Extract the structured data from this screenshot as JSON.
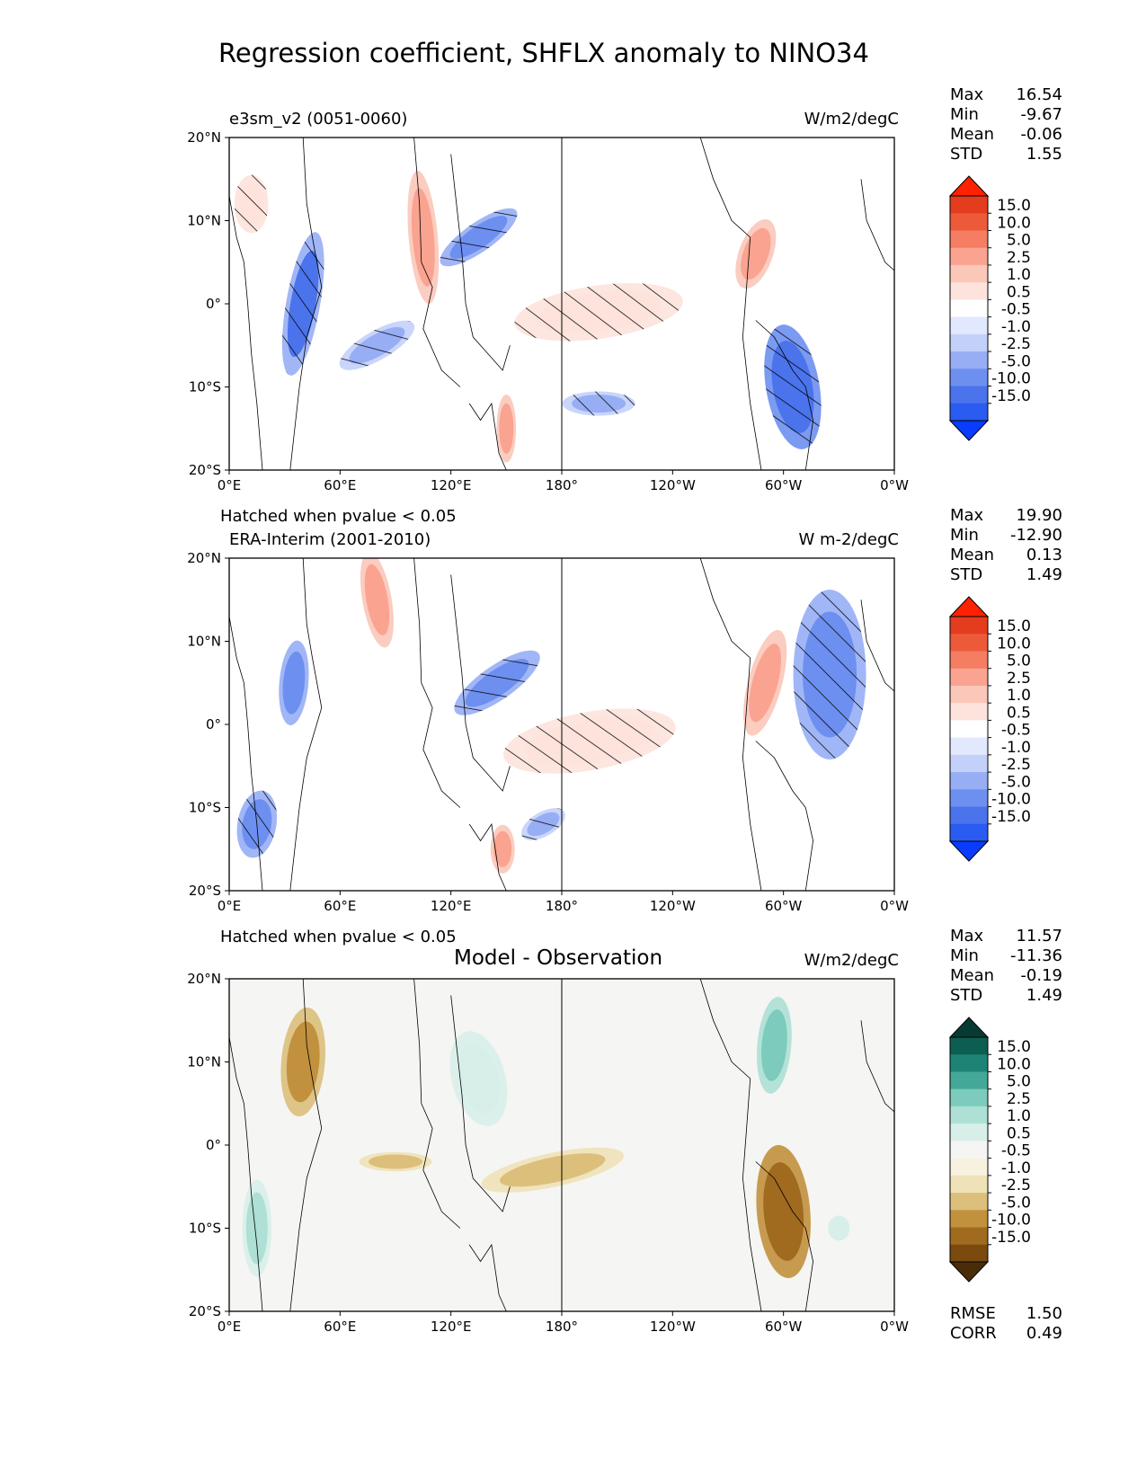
{
  "title": "Regression coefficient, SHFLX anomaly to NINO34",
  "hatch_note": "Hatched when pvalue < 0.05",
  "colors": {
    "diverging": [
      "#0a3cff",
      "#2a5cf2",
      "#4a73ec",
      "#6d8ff0",
      "#97aef5",
      "#c3d0fa",
      "#e2e8fd",
      "#ffffff",
      "#fde3dc",
      "#fbc7b9",
      "#f9a390",
      "#f47d62",
      "#ed5a3a",
      "#e43c1f",
      "#ff2200"
    ],
    "brbg": [
      "#4a2d08",
      "#7a4a0e",
      "#a06a1f",
      "#c2913d",
      "#dcbf7a",
      "#f0e2b8",
      "#f7f1e0",
      "#f5f5f3",
      "#d8efe9",
      "#aee0d5",
      "#7ccbbd",
      "#43a898",
      "#1d8374",
      "#0d5e52",
      "#063b33"
    ]
  },
  "panels": [
    {
      "id": "model",
      "left_label": "e3sm_v2 (0051-0060)",
      "right_label": "W/m2/degC",
      "stats": [
        {
          "name": "Max",
          "value": "16.54"
        },
        {
          "name": "Min",
          "value": "-9.67"
        },
        {
          "name": "Mean",
          "value": "-0.06"
        },
        {
          "name": "STD",
          "value": "1.55"
        }
      ]
    },
    {
      "id": "obs",
      "left_label": "ERA-Interim (2001-2010)",
      "right_label": "W m-2/degC",
      "stats": [
        {
          "name": "Max",
          "value": "19.90"
        },
        {
          "name": "Min",
          "value": "-12.90"
        },
        {
          "name": "Mean",
          "value": "0.13"
        },
        {
          "name": "STD",
          "value": "1.49"
        }
      ]
    },
    {
      "id": "diff",
      "center_label": "Model - Observation",
      "right_label": "W/m2/degC",
      "stats": [
        {
          "name": "Max",
          "value": "11.57"
        },
        {
          "name": "Min",
          "value": "-11.36"
        },
        {
          "name": "Mean",
          "value": "-0.19"
        },
        {
          "name": "STD",
          "value": "1.49"
        }
      ],
      "extra_stats": [
        {
          "name": "RMSE",
          "value": "1.50"
        },
        {
          "name": "CORR",
          "value": "0.49"
        }
      ]
    }
  ],
  "axes": {
    "x_ticks": [
      "0°E",
      "60°E",
      "120°E",
      "180°",
      "120°W",
      "60°W",
      "0°W"
    ],
    "y_ticks": [
      "20°N",
      "10°N",
      "0°",
      "10°S",
      "20°S"
    ]
  },
  "colorbar_labels": [
    "15.0",
    "10.0",
    "5.0",
    "2.5",
    "1.0",
    "0.5",
    "-0.5",
    "-1.0",
    "-2.5",
    "-5.0",
    "-10.0",
    "-15.0"
  ],
  "chart_data": [
    {
      "type": "heatmap",
      "title": "e3sm_v2 (0051-0060)",
      "units": "W/m2/degC",
      "x_range_deg": [
        0,
        360
      ],
      "y_range_deg": [
        -20,
        20
      ],
      "levels": [
        -15,
        -10,
        -5,
        -2.5,
        -1,
        -0.5,
        0.5,
        1,
        2.5,
        5,
        10,
        15
      ],
      "features": [
        {
          "lon": 200,
          "lat": -1,
          "value": 2.5,
          "hatched": true,
          "desc": "central Pacific warm tongue"
        },
        {
          "lon": 135,
          "lat": 8,
          "value": -2.5,
          "hatched": true
        },
        {
          "lon": 285,
          "lat": 6,
          "value": 8,
          "hatched": false
        },
        {
          "lon": 305,
          "lat": -10,
          "value": -6,
          "hatched": true
        },
        {
          "lon": 40,
          "lat": 0,
          "value": -5,
          "hatched": true
        },
        {
          "lon": 12,
          "lat": 12,
          "value": 2.5,
          "hatched": true
        },
        {
          "lon": 105,
          "lat": 8,
          "value": 6,
          "hatched": false
        },
        {
          "lon": 150,
          "lat": -15,
          "value": 8,
          "hatched": false
        },
        {
          "lon": 80,
          "lat": -5,
          "value": -1.5,
          "hatched": true
        },
        {
          "lon": 200,
          "lat": -12,
          "value": -1.5,
          "hatched": true
        }
      ]
    },
    {
      "type": "heatmap",
      "title": "ERA-Interim (2001-2010)",
      "units": "W m-2/degC",
      "x_range_deg": [
        0,
        360
      ],
      "y_range_deg": [
        -20,
        20
      ],
      "levels": [
        -15,
        -10,
        -5,
        -2.5,
        -1,
        -0.5,
        0.5,
        1,
        2.5,
        5,
        10,
        15
      ],
      "features": [
        {
          "lon": 195,
          "lat": -2,
          "value": 2.5,
          "hatched": true
        },
        {
          "lon": 145,
          "lat": 5,
          "value": -2.5,
          "hatched": true
        },
        {
          "lon": 290,
          "lat": 5,
          "value": 8,
          "hatched": false
        },
        {
          "lon": 325,
          "lat": 6,
          "value": -2.5,
          "hatched": true
        },
        {
          "lon": 35,
          "lat": 5,
          "value": -4,
          "hatched": false
        },
        {
          "lon": 15,
          "lat": -12,
          "value": -3,
          "hatched": true
        },
        {
          "lon": 80,
          "lat": 15,
          "value": 6,
          "hatched": false
        },
        {
          "lon": 148,
          "lat": -15,
          "value": 9,
          "hatched": false
        },
        {
          "lon": 170,
          "lat": -12,
          "value": -1.5,
          "hatched": true
        }
      ]
    },
    {
      "type": "heatmap",
      "title": "Model - Observation",
      "units": "W/m2/degC",
      "x_range_deg": [
        0,
        360
      ],
      "y_range_deg": [
        -20,
        20
      ],
      "levels": [
        -15,
        -10,
        -5,
        -2.5,
        -1,
        -0.5,
        0.5,
        1,
        2.5,
        5,
        10,
        15
      ],
      "rmse": 1.5,
      "corr": 0.49,
      "features": [
        {
          "lon": 40,
          "lat": 10,
          "value": -4
        },
        {
          "lon": 15,
          "lat": -10,
          "value": 3
        },
        {
          "lon": 135,
          "lat": 8,
          "value": 2.5
        },
        {
          "lon": 175,
          "lat": -3,
          "value": -1.5
        },
        {
          "lon": 295,
          "lat": 12,
          "value": 6
        },
        {
          "lon": 300,
          "lat": -8,
          "value": -6
        },
        {
          "lon": 90,
          "lat": -2,
          "value": -1.5
        },
        {
          "lon": 330,
          "lat": -10,
          "value": 1.5
        }
      ]
    }
  ]
}
